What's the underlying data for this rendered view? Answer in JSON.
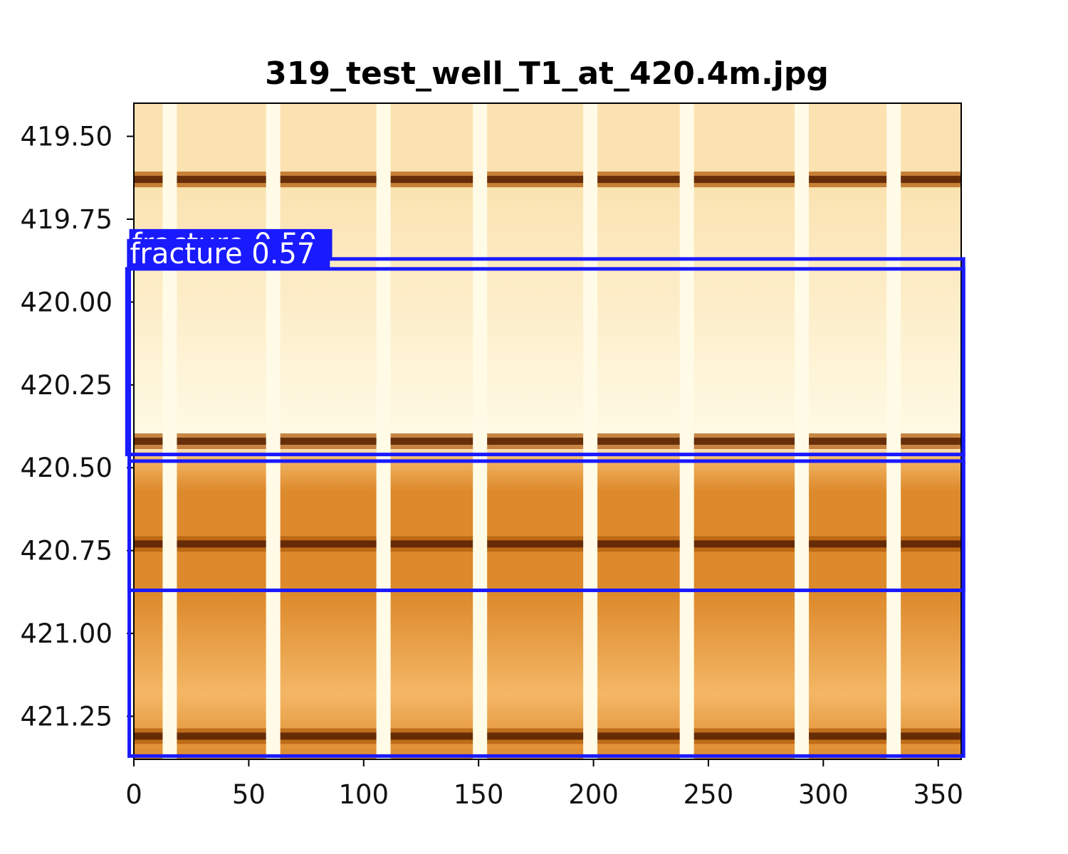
{
  "chart_data": {
    "type": "image-log-with-detections",
    "title": "319_test_well_T1_at_420.4m.jpg",
    "xlabel": "",
    "ylabel": "",
    "xlim": [
      0,
      360
    ],
    "ylim": [
      419.4,
      421.38
    ],
    "y_inverted": true,
    "xticks": [
      0,
      50,
      100,
      150,
      200,
      250,
      300,
      350
    ],
    "xtick_labels": [
      "0",
      "50",
      "100",
      "150",
      "200",
      "250",
      "300",
      "350"
    ],
    "yticks": [
      419.5,
      419.75,
      420.0,
      420.25,
      420.5,
      420.75,
      421.0,
      421.25
    ],
    "ytick_labels": [
      "419.50",
      "419.75",
      "420.00",
      "420.25",
      "420.50",
      "420.75",
      "421.00",
      "421.25"
    ],
    "colormap": [
      "#fffbe6",
      "#fbe2b0",
      "#f4b766",
      "#dd8a2c",
      "#b35d0d",
      "#5c2504"
    ],
    "gap_columns_deg": [
      15,
      60,
      108,
      150,
      198,
      240,
      290,
      330
    ],
    "dark_bands_depth": [
      419.63,
      420.42,
      420.73,
      421.31
    ],
    "grid": false,
    "legend": "none",
    "detection_color": "#1a1aff",
    "detections": [
      {
        "label": "fracture 0.59",
        "x_range": [
          -2,
          361
        ],
        "depth_range": [
          419.87,
          420.87
        ]
      },
      {
        "label": "fracture 0.57",
        "x_range": [
          -3,
          361
        ],
        "depth_range": [
          419.9,
          420.46
        ]
      },
      {
        "label": "",
        "x_range": [
          -2,
          361
        ],
        "depth_range": [
          420.48,
          421.37
        ]
      }
    ]
  }
}
